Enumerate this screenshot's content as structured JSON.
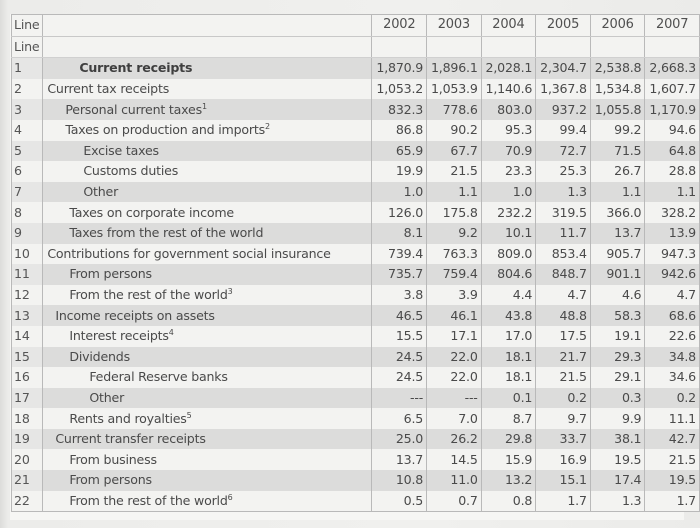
{
  "table": {
    "header": {
      "line_label": "Line",
      "subheader_line_label": "Line",
      "years": [
        "2002",
        "2003",
        "2004",
        "2005",
        "2006",
        "2007"
      ]
    },
    "rows": [
      {
        "line": "1",
        "label": "Current receipts",
        "note": "",
        "indent": "i0",
        "bold": true,
        "values": [
          "1,870.9",
          "1,896.1",
          "2,028.1",
          "2,304.7",
          "2,538.8",
          "2,668.3"
        ]
      },
      {
        "line": "2",
        "label": "Current tax receipts",
        "note": "",
        "indent": "i1",
        "values": [
          "1,053.2",
          "1,053.9",
          "1,140.6",
          "1,367.8",
          "1,534.8",
          "1,607.7"
        ]
      },
      {
        "line": "3",
        "label": "Personal current taxes",
        "note": "1",
        "indent": "i2",
        "values": [
          "832.3",
          "778.6",
          "803.0",
          "937.2",
          "1,055.8",
          "1,170.9"
        ]
      },
      {
        "line": "4",
        "label": "Taxes on production and imports",
        "note": "2",
        "indent": "i2",
        "values": [
          "86.8",
          "90.2",
          "95.3",
          "99.4",
          "99.2",
          "94.6"
        ]
      },
      {
        "line": "5",
        "label": "Excise taxes",
        "note": "",
        "indent": "i3",
        "values": [
          "65.9",
          "67.7",
          "70.9",
          "72.7",
          "71.5",
          "64.8"
        ]
      },
      {
        "line": "6",
        "label": "Customs duties",
        "note": "",
        "indent": "i3",
        "values": [
          "19.9",
          "21.5",
          "23.3",
          "25.3",
          "26.7",
          "28.8"
        ]
      },
      {
        "line": "7",
        "label": "Other",
        "note": "",
        "indent": "i3",
        "values": [
          "1.0",
          "1.1",
          "1.0",
          "1.3",
          "1.1",
          "1.1"
        ]
      },
      {
        "line": "8",
        "label": "Taxes on corporate income",
        "note": "",
        "indent": "i5",
        "values": [
          "126.0",
          "175.8",
          "232.2",
          "319.5",
          "366.0",
          "328.2"
        ]
      },
      {
        "line": "9",
        "label": "Taxes from the rest of the world",
        "note": "",
        "indent": "i5",
        "values": [
          "8.1",
          "9.2",
          "10.1",
          "11.7",
          "13.7",
          "13.9"
        ]
      },
      {
        "line": "10",
        "label": "Contributions for government social insurance",
        "note": "",
        "indent": "i1",
        "values": [
          "739.4",
          "763.3",
          "809.0",
          "853.4",
          "905.7",
          "947.3"
        ]
      },
      {
        "line": "11",
        "label": "From persons",
        "note": "",
        "indent": "i5",
        "values": [
          "735.7",
          "759.4",
          "804.6",
          "848.7",
          "901.1",
          "942.6"
        ]
      },
      {
        "line": "12",
        "label": "From the rest of the world",
        "note": "3",
        "indent": "i5",
        "values": [
          "3.8",
          "3.9",
          "4.4",
          "4.7",
          "4.6",
          "4.7"
        ]
      },
      {
        "line": "13",
        "label": "Income receipts on assets",
        "note": "",
        "indent": "i6",
        "values": [
          "46.5",
          "46.1",
          "43.8",
          "48.8",
          "58.3",
          "68.6"
        ]
      },
      {
        "line": "14",
        "label": "Interest receipts",
        "note": "4",
        "indent": "i5",
        "values": [
          "15.5",
          "17.1",
          "17.0",
          "17.5",
          "19.1",
          "22.6"
        ]
      },
      {
        "line": "15",
        "label": "Dividends",
        "note": "",
        "indent": "i5",
        "values": [
          "24.5",
          "22.0",
          "18.1",
          "21.7",
          "29.3",
          "34.8"
        ]
      },
      {
        "line": "16",
        "label": "Federal Reserve banks",
        "note": "",
        "indent": "i4",
        "values": [
          "24.5",
          "22.0",
          "18.1",
          "21.5",
          "29.1",
          "34.6"
        ]
      },
      {
        "line": "17",
        "label": "Other",
        "note": "",
        "indent": "i4",
        "values": [
          "---",
          "---",
          "0.1",
          "0.2",
          "0.3",
          "0.2"
        ]
      },
      {
        "line": "18",
        "label": "Rents and royalties",
        "note": "5",
        "indent": "i5",
        "values": [
          "6.5",
          "7.0",
          "8.7",
          "9.7",
          "9.9",
          "11.1"
        ]
      },
      {
        "line": "19",
        "label": "Current transfer receipts",
        "note": "",
        "indent": "i6",
        "values": [
          "25.0",
          "26.2",
          "29.8",
          "33.7",
          "38.1",
          "42.7"
        ]
      },
      {
        "line": "20",
        "label": "From business",
        "note": "",
        "indent": "i5",
        "values": [
          "13.7",
          "14.5",
          "15.9",
          "16.9",
          "19.5",
          "21.5"
        ]
      },
      {
        "line": "21",
        "label": "From persons",
        "note": "",
        "indent": "i5",
        "values": [
          "10.8",
          "11.0",
          "13.2",
          "15.1",
          "17.4",
          "19.5"
        ]
      },
      {
        "line": "22",
        "label": "From the rest of the world",
        "note": "6",
        "indent": "i5",
        "values": [
          "0.5",
          "0.7",
          "0.8",
          "1.7",
          "1.3",
          "1.7"
        ]
      }
    ]
  }
}
